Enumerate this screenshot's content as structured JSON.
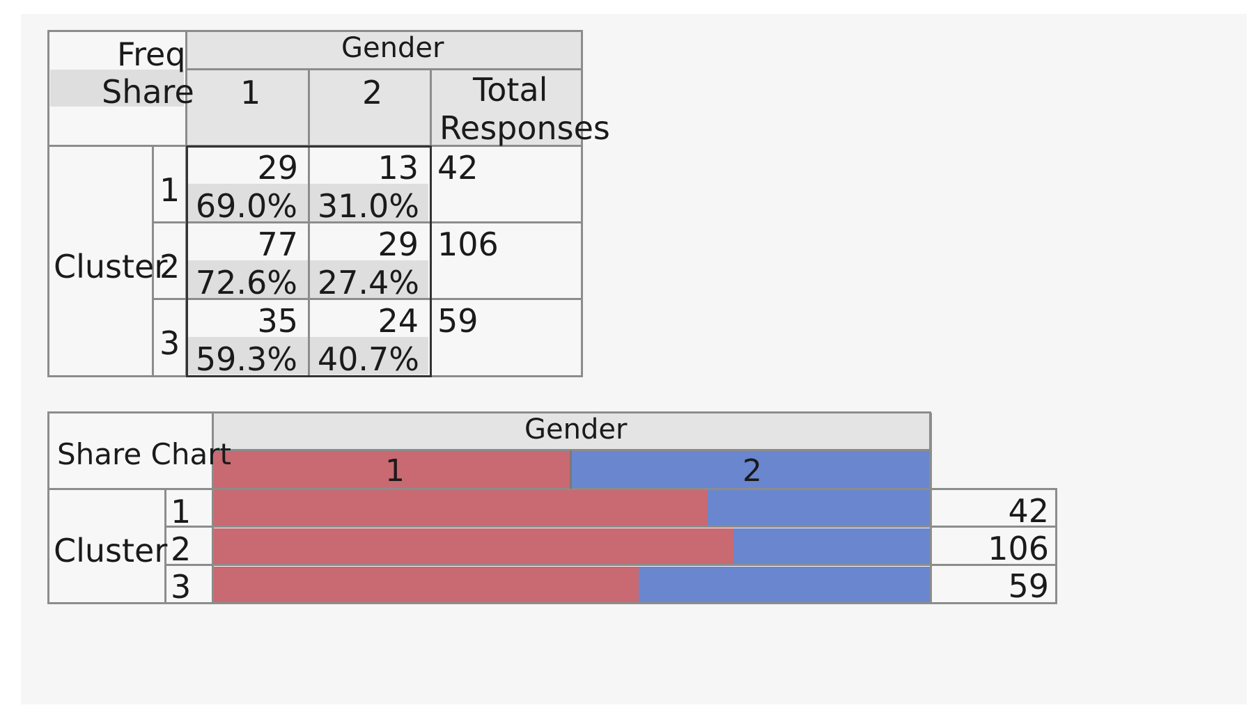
{
  "colors": {
    "gender_1": "#c96971",
    "gender_2": "#6a86cf"
  },
  "freq_table": {
    "corner_freq": "Freq",
    "corner_share": "Share",
    "column_group": "Gender",
    "columns": [
      "1",
      "2"
    ],
    "total_label_line1": "Total",
    "total_label_line2": "Responses",
    "row_group": "Cluster",
    "rows": [
      {
        "label": "1",
        "freq": [
          "29",
          "13"
        ],
        "share": [
          "69.0%",
          "31.0%"
        ],
        "total": "42"
      },
      {
        "label": "2",
        "freq": [
          "77",
          "29"
        ],
        "share": [
          "72.6%",
          "27.4%"
        ],
        "total": "106"
      },
      {
        "label": "3",
        "freq": [
          "35",
          "24"
        ],
        "share": [
          "59.3%",
          "40.7%"
        ],
        "total": "59"
      }
    ]
  },
  "share_chart": {
    "corner_label": "Share Chart",
    "column_group": "Gender",
    "legend": [
      "1",
      "2"
    ],
    "row_group": "Cluster",
    "row_labels": [
      "1",
      "2",
      "3"
    ],
    "totals": [
      "42",
      "106",
      "59"
    ]
  },
  "chart_data": {
    "type": "bar",
    "title": "",
    "stacked": true,
    "orientation": "horizontal",
    "categories": [
      "1",
      "2",
      "3"
    ],
    "series": [
      {
        "name": "1",
        "values": [
          0.69,
          0.726,
          0.593
        ]
      },
      {
        "name": "2",
        "values": [
          0.31,
          0.274,
          0.407
        ]
      }
    ],
    "xlim": [
      0,
      1
    ]
  }
}
